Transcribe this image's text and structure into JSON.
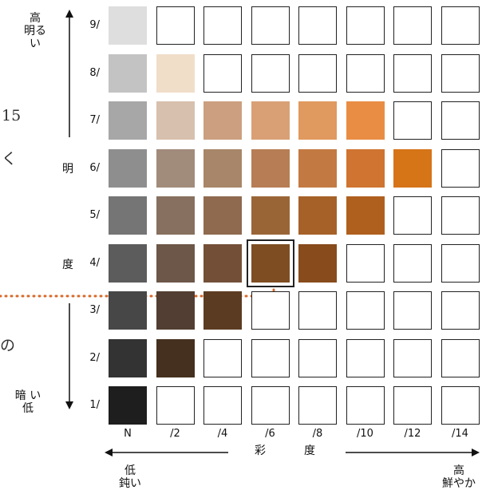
{
  "diagram": {
    "lightness_axis": {
      "top_label_line1": "高",
      "top_label_line2": "明るい",
      "name_char1": "明",
      "name_char2": "度",
      "bottom_label_line1": "暗 い",
      "bottom_label_line2": "低"
    },
    "chroma_axis": {
      "name_char1": "彩",
      "name_char2": "度",
      "left_label_line1": "低",
      "left_label_line2": "鈍い",
      "right_label_line1": "高",
      "right_label_line2": "鮮やか"
    },
    "row_labels": [
      "9/",
      "8/",
      "7/",
      "6/",
      "5/",
      "4/",
      "3/",
      "2/",
      "1/"
    ],
    "col_labels": [
      "N",
      "/2",
      "/4",
      "/6",
      "/8",
      "/10",
      "/12",
      "/14"
    ],
    "side_fragments": [
      "15",
      "く",
      "の"
    ],
    "colors": {
      "line": "#111111",
      "dotted_marker": "#D8692A",
      "highlight_border": "#222222"
    },
    "grid": [
      [
        "#DEDEDE",
        null,
        null,
        null,
        null,
        null,
        null,
        null
      ],
      [
        "#C3C3C3",
        "#F1DEC9",
        null,
        null,
        null,
        null,
        null,
        null
      ],
      [
        "#A7A7A7",
        "#D8C0AE",
        "#CB9F80",
        "#D9A075",
        "#E0995F",
        "#E98D45",
        null,
        null
      ],
      [
        "#8E8E8E",
        "#A18B7A",
        "#A88669",
        "#B77D54",
        "#C27A42",
        "#CF7431",
        "#D67418",
        null
      ],
      [
        "#757575",
        "#87705F",
        "#8F6A4F",
        "#9A6536",
        "#A66128",
        "#B0601E",
        null,
        null
      ],
      [
        "#5C5C5C",
        "#6C5748",
        "#744F38",
        "#7E4D22",
        "#874B1C",
        null,
        null,
        null
      ],
      [
        "#474747",
        "#523E33",
        "#5B3C23",
        null,
        null,
        null,
        null,
        null
      ],
      [
        "#333333",
        "#45301F",
        null,
        null,
        null,
        null,
        null,
        null
      ],
      [
        "#1E1E1E",
        null,
        null,
        null,
        null,
        null,
        null,
        null
      ]
    ],
    "highlight": {
      "row": 5,
      "col": 3
    }
  }
}
